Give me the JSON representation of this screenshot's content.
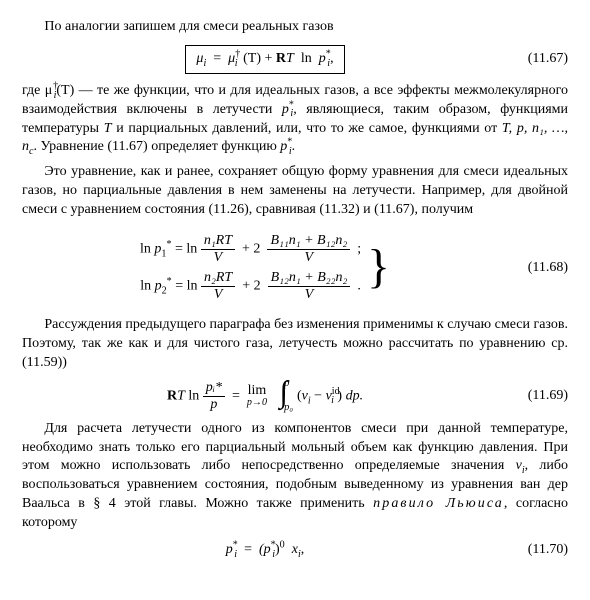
{
  "para1": "По аналогии запишем для смеси реальных газов",
  "eq67": {
    "lhs": "μ",
    "lhs_sub": "i",
    "rhs_mu": "μ",
    "rhs_mu_sup": "†",
    "rhs_mu_sub": "i",
    "T_arg": "(T)",
    "plus": "+",
    "R": "R",
    "Tsym": "T",
    "ln": "ln",
    "p": "p",
    "p_sub": "i",
    "p_sup": "*",
    "comma": ",",
    "num": "(11.67)"
  },
  "para2_a": "где μ",
  "para2_musup": "†",
  "para2_musub": "i",
  "para2_b": "(T) — те же функции, что и для идеальных газов, а все эффекты межмолекулярного взаимодействия включены в летучести ",
  "para2_pstar": "p",
  "para2_pstar_sub": "i",
  "para2_pstar_sup": "*",
  "para2_c": ", являющиеся, таким образом, функциями температуры ",
  "para2_T": "T",
  "para2_d": " и парциальных давлений, или, что то же самое, функциями от ",
  "para2_vars": "T, p, n₁, …, n",
  "para2_vars_c": "c",
  "para2_e": ". Уравнение (11.67) определяет функцию ",
  "para2_pstar2": "p",
  "para2_pstar2_sub": "i",
  "para2_pstar2_sup": "*",
  "para2_f": ".",
  "para3": "Это уравнение, как и ранее, сохраняет общую форму уравнения для смеси идеальных газов, но парциальные давления в нем заменены на летучести. Например, для двойной смеси с уравнением состояния (11.26), сравнивая (11.32) и (11.67), получим",
  "eq68": {
    "line1": {
      "lhs_ln": "ln",
      "lhs_p": "p",
      "lhs_sub": "1",
      "lhs_sup": "*",
      "eq": "=",
      "t1_ln": "ln",
      "t1_num": "n₁RT",
      "t1_den": "V",
      "plus": "+ 2",
      "t2_num": "B₁₁n₁ + B₁₂n₂",
      "t2_den": "V",
      "tail": ";"
    },
    "line2": {
      "lhs_ln": "ln",
      "lhs_p": "p",
      "lhs_sub": "2",
      "lhs_sup": "*",
      "eq": "=",
      "t1_ln": "ln",
      "t1_num": "n₂RT",
      "t1_den": "V",
      "plus": "+ 2",
      "t2_num": "B₁₂n₁ + B₂₂n₂",
      "t2_den": "V",
      "tail": "."
    },
    "num": "(11.68)"
  },
  "para4": "Рассуждения предыдущего параграфа без изменения применимы к случаю смеси газов. Поэтому, так же как и для чистого газа, летучесть можно рассчитать по уравнению ср. (11.59))",
  "eq69": {
    "R": "R",
    "T": "T",
    "ln": "ln",
    "frac_num": "pᵢ*",
    "frac_den": "p",
    "eq": "=",
    "lim": "lim",
    "lim_sub": "p→0",
    "int_upper": "p",
    "int_lower": "p₀",
    "paren_l": "(",
    "vi": "v",
    "vi_sub": "i",
    "minus": "−",
    "vi_id": "v",
    "vi_id_sub": "i",
    "vi_id_sup": "id",
    "paren_r": ")",
    "dp": "dp.",
    "num": "(11.69)"
  },
  "para5_a": "Для расчета летучести одного из компонентов смеси при данной температуре, необходимо знать только его парциальный мольный объем как функцию давления. При этом можно использовать либо непосредственно определяемые значения ",
  "para5_vi": "v",
  "para5_vi_sub": "i",
  "para5_b": ", либо воспользоваться уравнением состояния, подобным выведенному из уравнения ван дер Ваальса в § 4 этой главы. Можно также применить ",
  "para5_rule": "правило Льюиса",
  "para5_c": ", согласно которому",
  "eq70": {
    "lhs_p": "p",
    "lhs_sub": "i",
    "lhs_sup": "*",
    "eq": "=",
    "rhs_p": "(p",
    "rhs_sub": "i",
    "rhs_sup": "*",
    "rhs_paren_sup": "0",
    "x": "x",
    "x_sub": "i",
    "comma": ",",
    "num": "(11.70)"
  }
}
